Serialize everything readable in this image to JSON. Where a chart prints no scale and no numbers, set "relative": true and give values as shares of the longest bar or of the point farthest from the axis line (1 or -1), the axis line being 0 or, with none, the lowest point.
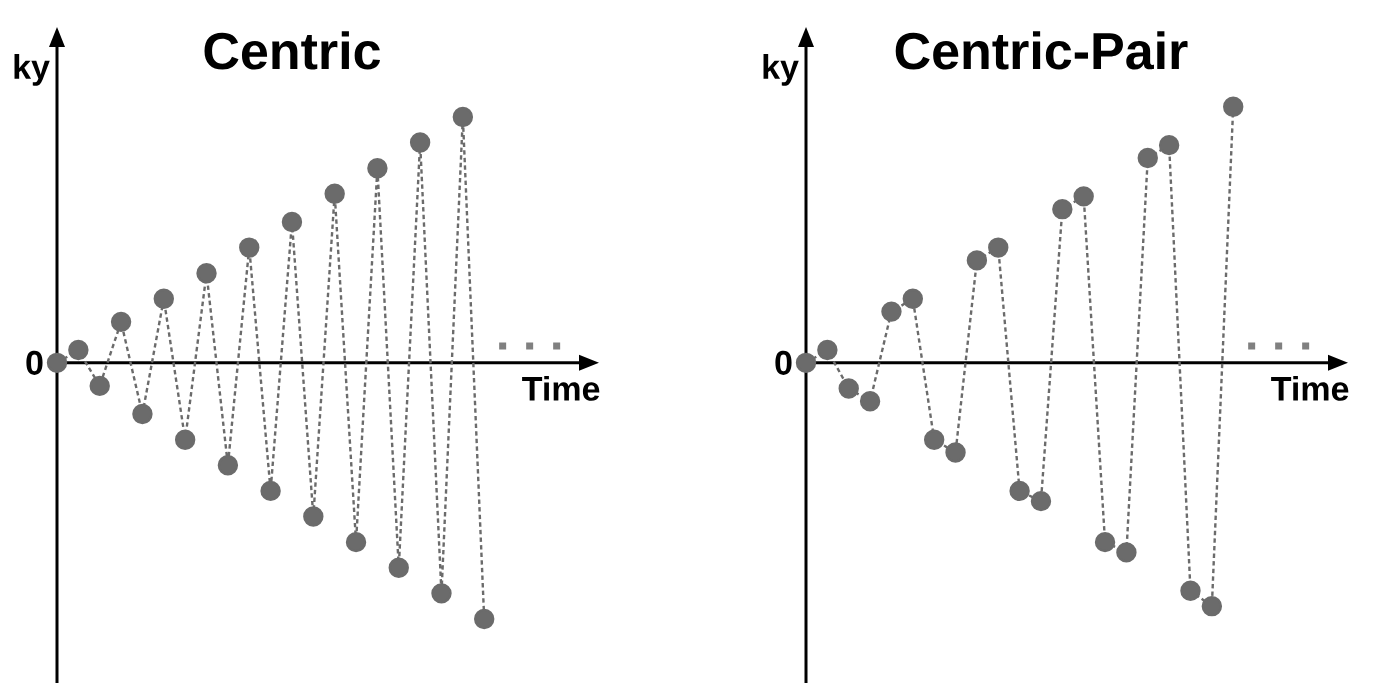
{
  "chart_data": [
    {
      "type": "line",
      "title": "Centric",
      "xlabel": "Time",
      "ylabel": "ky",
      "relative": true,
      "marker": "circle",
      "line_style": "dashed",
      "categories": [
        null,
        null,
        null,
        null,
        null,
        null,
        null,
        null,
        null,
        null,
        null,
        null,
        null,
        null,
        null,
        null,
        null,
        null,
        null,
        null,
        null
      ],
      "series": [
        {
          "color": "#6b6b6b",
          "values": [
            0,
            0.05,
            -0.09,
            0.16,
            -0.2,
            0.25,
            -0.3,
            0.35,
            -0.4,
            0.45,
            -0.5,
            0.55,
            -0.6,
            0.66,
            -0.7,
            0.76,
            -0.8,
            0.86,
            -0.9,
            0.96,
            -1
          ]
        }
      ],
      "annotations": [
        "0"
      ]
    },
    {
      "type": "line",
      "title": "Centric-Pair",
      "xlabel": "Time",
      "ylabel": "ky",
      "relative": true,
      "marker": "circle",
      "line_style": "dashed",
      "categories": [
        null,
        null,
        null,
        null,
        null,
        null,
        null,
        null,
        null,
        null,
        null,
        null,
        null,
        null,
        null,
        null,
        null,
        null,
        null,
        null,
        null
      ],
      "series": [
        {
          "color": "#6b6b6b",
          "values": [
            0,
            0.05,
            -0.1,
            -0.15,
            0.2,
            0.25,
            -0.3,
            -0.35,
            0.4,
            0.45,
            -0.5,
            -0.54,
            0.6,
            0.65,
            -0.7,
            -0.74,
            0.8,
            0.85,
            -0.89,
            -0.95,
            1
          ]
        }
      ],
      "annotations": [
        "0"
      ]
    }
  ]
}
